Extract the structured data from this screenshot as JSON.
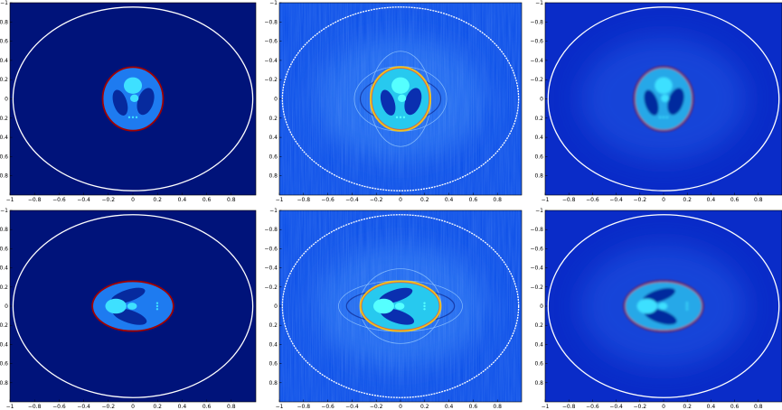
{
  "chart_data": [
    {
      "type": "heatmap",
      "variant": "vertical_clean",
      "background": "#00137a",
      "inner_fill": "#1e7bf0",
      "ring": "#a00000",
      "xticks": [
        "−1",
        "−0.8",
        "−0.6",
        "−0.4",
        "−0.2",
        "0",
        "0.2",
        "0.4",
        "0.6",
        "0.8"
      ],
      "yticks": [
        "−1",
        "−0.8",
        "−0.6",
        "−0.4",
        "−0.2",
        "0",
        "0.2",
        "0.4",
        "0.6",
        "0.8"
      ],
      "xlim": [
        -1,
        1
      ],
      "ylim": [
        -1,
        1
      ]
    },
    {
      "type": "heatmap",
      "variant": "vertical_noisy",
      "background": "#0c4fe8",
      "inner_fill": "#27c9ef",
      "ring": "#f0c020",
      "xticks": [
        "−1",
        "−0.8",
        "−0.6",
        "−0.4",
        "−0.2",
        "0",
        "0.2",
        "0.4",
        "0.6",
        "0.8"
      ],
      "yticks": [
        "−1",
        "−0.8",
        "−0.6",
        "−0.4",
        "−0.2",
        "0",
        "0.2",
        "0.4",
        "0.6",
        "0.8"
      ],
      "xlim": [
        -1,
        1
      ],
      "ylim": [
        -1,
        1
      ]
    },
    {
      "type": "heatmap",
      "variant": "vertical_smooth",
      "background": "#0a2cc8",
      "inner_fill": "#27a8e8",
      "ring": "#a00000",
      "xticks": [
        "−1",
        "−0.8",
        "−0.6",
        "−0.4",
        "−0.2",
        "0",
        "0.2",
        "0.4",
        "0.6",
        "0.8"
      ],
      "yticks": [
        "−1",
        "−0.8",
        "−0.6",
        "−0.4",
        "−0.2",
        "0",
        "0.2",
        "0.4",
        "0.6",
        "0.8"
      ],
      "xlim": [
        -1,
        1
      ],
      "ylim": [
        -1,
        1
      ]
    },
    {
      "type": "heatmap",
      "variant": "horizontal_clean",
      "background": "#00137a",
      "inner_fill": "#1e7bf0",
      "ring": "#a00000",
      "xticks": [
        "−1",
        "−0.8",
        "−0.6",
        "−0.4",
        "−0.2",
        "0",
        "0.2",
        "0.4",
        "0.6",
        "0.8"
      ],
      "yticks": [
        "−1",
        "−0.8",
        "−0.6",
        "−0.4",
        "−0.2",
        "0",
        "0.2",
        "0.4",
        "0.6",
        "0.8"
      ],
      "xlim": [
        -1,
        1
      ],
      "ylim": [
        -1,
        1
      ]
    },
    {
      "type": "heatmap",
      "variant": "horizontal_noisy",
      "background": "#0c4fe8",
      "inner_fill": "#27c9ef",
      "ring": "#f0c020",
      "xticks": [
        "−1",
        "−0.8",
        "−0.6",
        "−0.4",
        "−0.2",
        "0",
        "0.2",
        "0.4",
        "0.6",
        "0.8"
      ],
      "yticks": [
        "−1",
        "−0.8",
        "−0.6",
        "−0.4",
        "−0.2",
        "0",
        "0.2",
        "0.4",
        "0.6",
        "0.8"
      ],
      "xlim": [
        -1,
        1
      ],
      "ylim": [
        -1,
        1
      ]
    },
    {
      "type": "heatmap",
      "variant": "horizontal_smooth",
      "background": "#0a2cc8",
      "inner_fill": "#27a8e8",
      "ring": "#a00000",
      "xticks": [
        "−1",
        "−0.8",
        "−0.6",
        "−0.4",
        "−0.2",
        "0",
        "0.2",
        "0.4",
        "0.6",
        "0.8"
      ],
      "yticks": [
        "−1",
        "−0.8",
        "−0.6",
        "−0.4",
        "−0.2",
        "0",
        "0.2",
        "0.4",
        "0.6",
        "0.8"
      ],
      "xlim": [
        -1,
        1
      ],
      "ylim": [
        -1,
        1
      ]
    }
  ]
}
